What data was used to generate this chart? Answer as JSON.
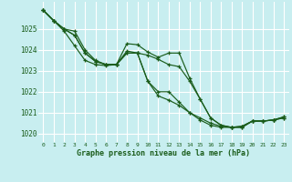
{
  "title": "Graphe pression niveau de la mer (hPa)",
  "bg_color": "#c8eef0",
  "grid_color": "#ffffff",
  "line_color": "#1a5c1a",
  "text_color": "#1a5c1a",
  "xlim": [
    -0.5,
    23.5
  ],
  "ylim": [
    1019.6,
    1026.3
  ],
  "yticks": [
    1020,
    1021,
    1022,
    1023,
    1024,
    1025
  ],
  "xticks": [
    0,
    1,
    2,
    3,
    4,
    5,
    6,
    7,
    8,
    9,
    10,
    11,
    12,
    13,
    14,
    15,
    16,
    17,
    18,
    19,
    20,
    21,
    22,
    23
  ],
  "series": [
    [
      1025.9,
      1025.4,
      1025.0,
      1024.9,
      1024.0,
      1023.5,
      1023.3,
      1023.3,
      1024.3,
      1024.25,
      1023.9,
      1023.65,
      1023.85,
      1023.85,
      1022.65,
      1021.65,
      1020.75,
      1020.4,
      1020.3,
      1020.3,
      1020.6,
      1020.6,
      1020.65,
      1020.8
    ],
    [
      1025.9,
      1025.4,
      1025.0,
      1024.7,
      1023.85,
      1023.45,
      1023.3,
      1023.3,
      1023.95,
      1023.85,
      1023.75,
      1023.55,
      1023.3,
      1023.2,
      1022.5,
      1021.65,
      1020.75,
      1020.4,
      1020.3,
      1020.3,
      1020.6,
      1020.6,
      1020.65,
      1020.8
    ],
    [
      1025.9,
      1025.4,
      1024.9,
      1024.2,
      1023.5,
      1023.3,
      1023.25,
      1023.3,
      1023.85,
      1023.85,
      1022.5,
      1021.8,
      1021.6,
      1021.35,
      1021.0,
      1020.65,
      1020.4,
      1020.3,
      1020.3,
      1020.35,
      1020.6,
      1020.6,
      1020.65,
      1020.75
    ],
    [
      1025.9,
      1025.4,
      1025.0,
      1024.7,
      1023.85,
      1023.45,
      1023.3,
      1023.3,
      1023.85,
      1023.85,
      1022.5,
      1022.0,
      1022.0,
      1021.5,
      1021.0,
      1020.75,
      1020.5,
      1020.35,
      1020.3,
      1020.35,
      1020.6,
      1020.6,
      1020.65,
      1020.75
    ]
  ]
}
